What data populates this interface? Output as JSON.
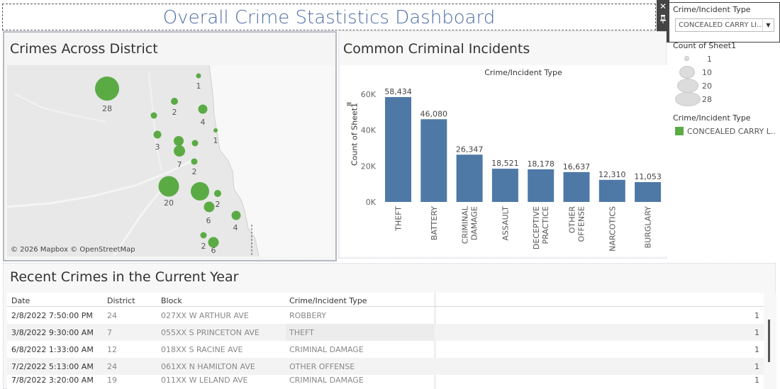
{
  "dashboard": {
    "title": "Overall Crime Stastistics Dashboard"
  },
  "toolbar": {
    "close_glyph": "✕",
    "pin_glyph": "⊓",
    "more_glyph": "▾"
  },
  "filter": {
    "title": "Crime/Incident Type",
    "selected": "CONCEALED CARRY LI...",
    "dropdown_glyph": "▼"
  },
  "size_legend": {
    "title": "Count of Sheet1",
    "items": [
      "1",
      "10",
      "20",
      "28"
    ]
  },
  "color_legend": {
    "title": "Crime/Incident Type",
    "item": "CONCEALED CARRY L..",
    "color": "#5bab45"
  },
  "map": {
    "title": "Crimes Across District",
    "attribution": "© 2026 Mapbox © OpenStreetMap",
    "bubble_color": "#5bab45",
    "labels": [
      "1",
      "28",
      "2",
      "4",
      "1",
      "3",
      "7",
      "2",
      "20",
      "2",
      "6",
      "4",
      "2",
      "6"
    ]
  },
  "bar_chart": {
    "title": "Common Criminal Incidents",
    "column_header": "Crime/Incident Type",
    "y_axis_label": "Count of Sheet1",
    "bar_color": "#4e79a7"
  },
  "chart_data": {
    "type": "bar",
    "title": "Common Criminal Incidents",
    "xlabel": "Crime/Incident Type",
    "ylabel": "Count of Sheet1",
    "ylim": [
      0,
      60000
    ],
    "yticks": [
      "0K",
      "20K",
      "40K",
      "60K"
    ],
    "categories": [
      "THEFT",
      "BATTERY",
      "CRIMINAL DAMAGE",
      "ASSAULT",
      "DECEPTIVE PRACTICE",
      "OTHER OFFENSE",
      "NARCOTICS",
      "BURGLARY"
    ],
    "category_lines": [
      [
        "THEFT"
      ],
      [
        "BATTERY"
      ],
      [
        "CRIMINAL",
        "DAMAGE"
      ],
      [
        "ASSAULT"
      ],
      [
        "DECEPTIVE",
        "PRACTICE"
      ],
      [
        "OTHER",
        "OFFENSE"
      ],
      [
        "NARCOTICS"
      ],
      [
        "BURGLARY"
      ]
    ],
    "values": [
      58434,
      46080,
      26347,
      18521,
      18178,
      16637,
      12310,
      11053
    ],
    "value_labels": [
      "58,434",
      "46,080",
      "26,347",
      "18,521",
      "18,178",
      "16,637",
      "12,310",
      "11,053"
    ],
    "grid": false
  },
  "recent_table": {
    "title": "Recent Crimes in the Current Year",
    "headers": {
      "date": "Date",
      "district": "District",
      "block": "Block",
      "type": "Crime/Incident Type"
    },
    "rows": [
      {
        "date": "2/8/2022 7:50:00 PM",
        "district": "24",
        "block": "027XX W ARTHUR AVE",
        "type": "ROBBERY",
        "count": "1"
      },
      {
        "date": "3/8/2022 9:30:00 AM",
        "district": "7",
        "block": "055XX S PRINCETON AVE",
        "type": "THEFT",
        "count": "1"
      },
      {
        "date": "6/8/2022 1:33:00 AM",
        "district": "12",
        "block": "018XX S RACINE AVE",
        "type": "CRIMINAL DAMAGE",
        "count": "1"
      },
      {
        "date": "7/2/2022 5:13:00 AM",
        "district": "24",
        "block": "061XX N HAMILTON AVE",
        "type": "OTHER OFFENSE",
        "count": "1"
      },
      {
        "date": "7/8/2022 3:20:00 AM",
        "district": "19",
        "block": "011XX W LELAND AVE",
        "type": "CRIMINAL DAMAGE",
        "count": "1"
      }
    ]
  }
}
